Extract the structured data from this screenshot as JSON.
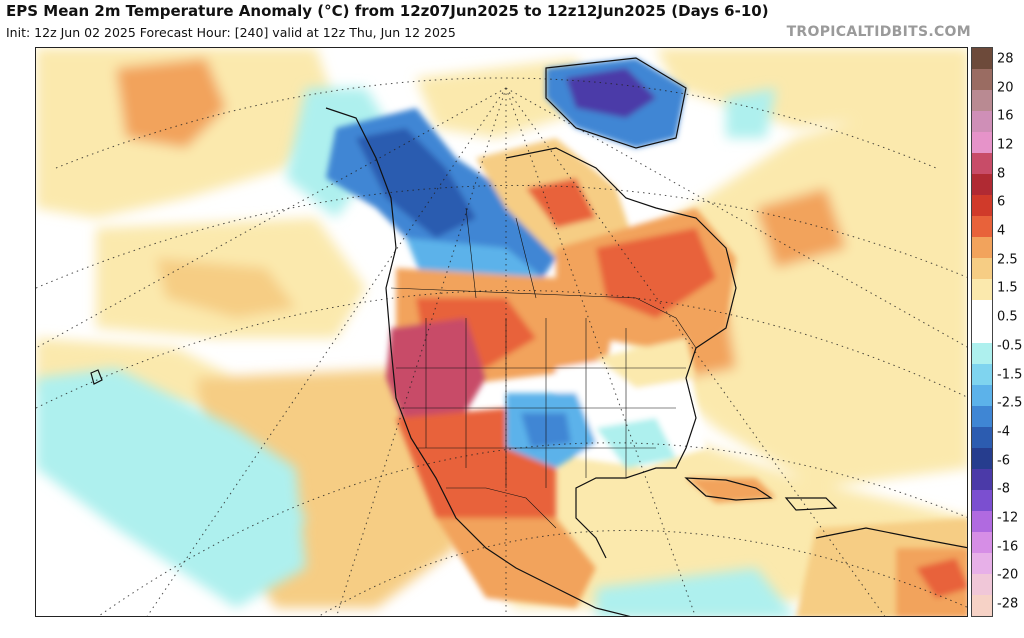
{
  "header": {
    "title": "EPS Mean 2m Temperature Anomaly (°C) from 12z07Jun2025 to 12z12Jun2025 (Days 6-10)",
    "subtitle": "Init: 12z Jun 02 2025   Forecast Hour: [240]   valid at 12z Thu, Jun 12 2025",
    "brand": "TROPICALTIDBITS.COM"
  },
  "legend": {
    "labels": [
      "28",
      "20",
      "16",
      "12",
      "8",
      "6",
      "4",
      "2.5",
      "1.5",
      "0.5",
      "-0.5",
      "-1.5",
      "-2.5",
      "-4",
      "-6",
      "-8",
      "-12",
      "-16",
      "-20",
      "-28"
    ],
    "colors": [
      "#6d4a3a",
      "#9a6c62",
      "#b98a92",
      "#cf8fb7",
      "#e693c9",
      "#c84c68",
      "#b02a33",
      "#d03a2a",
      "#e8623a",
      "#f2a35c",
      "#f6cd84",
      "#fbe9ad",
      "#ffffff",
      "#ffffff",
      "#aef0ee",
      "#7fd4ef",
      "#5cb2ea",
      "#3f86d4",
      "#2c5cb0",
      "#263d8e",
      "#4b3aa8",
      "#7b4fd0",
      "#b06ae0",
      "#d68ee6",
      "#e7b0e8",
      "#f0c7d8",
      "#f6d2c6"
    ]
  },
  "palette": {
    "ocean_neutral": "#ffffff",
    "warm_light": "#fbe9ad",
    "warm_mid": "#f6cd84",
    "warm": "#f2a35c",
    "hot": "#e8623a",
    "very_hot": "#c84c68",
    "cool_light": "#aef0ee",
    "cool": "#5cb2ea",
    "cold": "#3f86d4",
    "very_cold": "#2c5cb0",
    "greenland_cold": "#4b3aa8"
  }
}
